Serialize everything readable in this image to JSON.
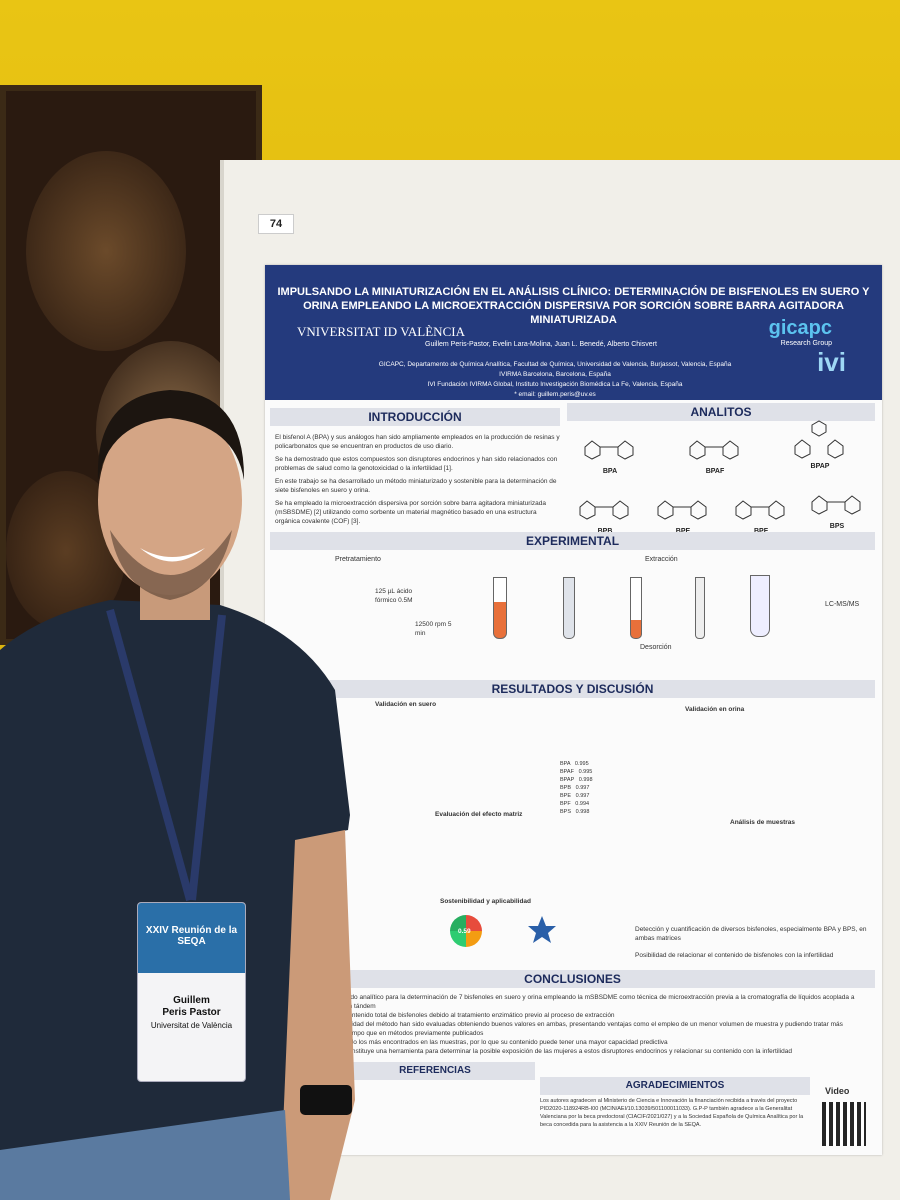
{
  "poster": {
    "number": "74",
    "title": "IMPULSANDO LA MINIATURIZACIÓN EN EL ANÁLISIS CLÍNICO: DETERMINACIÓN DE BISFENOLES EN SUERO Y ORINA EMPLEANDO LA MICROEXTRACCIÓN DISPERSIVA POR SORCIÓN SOBRE BARRA AGITADORA MINIATURIZADA",
    "university": "VNIVERSITAT ID VALÈNCIA",
    "authors": "Guillem Peris-Pastor, Evelin Lara-Molina, Juan L. Benedé, Alberto Chisvert",
    "affiliation1": "GICAPC, Departamento de Química Analítica, Facultad de Química, Universidad de Valencia, Burjassot, Valencia, España",
    "affiliation2": "IVIRMA Barcelona, Barcelona, España",
    "affiliation3": "IVI Fundación IVIRMA Global, Instituto Investigación Biomédica La Fe, Valencia, España",
    "email": "* email: guillem.peris@uv.es",
    "group": "gicapc",
    "group_sub": "Research Group",
    "ivi": "ivi",
    "sections": {
      "intro": "INTRODUCCIÓN",
      "analitos": "ANALITOS",
      "experimental": "EXPERIMENTAL",
      "resultados": "RESULTADOS Y DISCUSIÓN",
      "conclusiones": "CONCLUSIONES",
      "referencias": "REFERENCIAS",
      "agradecimientos": "AGRADECIMIENTOS",
      "video": "Video"
    },
    "intro_bullets": [
      "El bisfenol A (BPA) y sus análogos han sido ampliamente empleados en la producción de resinas y policarbonatos que se encuentran en productos de uso diario.",
      "Se ha demostrado que estos compuestos son disruptores endocrinos y han sido relacionados con problemas de salud como la genotoxicidad o la infertilidad [1].",
      "En este trabajo se ha desarrollado un método miniaturizado y sostenible para la determinación de siete bisfenoles en suero y orina.",
      "Se ha empleado la microextracción dispersiva por sorción sobre barra agitadora miniaturizada (mSBSDME) [2] utilizando como sorbente un material magnético basado en una estructura orgánica covalente (COF) [3]."
    ],
    "analytes": [
      "BPA",
      "BPAF",
      "BPAP",
      "BPB",
      "BPE",
      "BPF",
      "BPS"
    ],
    "experimental_labels": {
      "pretratamiento": "Pretratamiento",
      "extraccion": "Extracción",
      "desorcion": "Desorción",
      "lcms": "LC-MS/MS",
      "step1": "125 µL ácido fórmico 0.5M",
      "step2": "12500 rpm 5 min"
    },
    "validation_titles": [
      "Validación en suero",
      "Validación en orina"
    ],
    "matrix_title": "Evaluación del efecto matriz",
    "samples_title": "Análisis de muestras",
    "sustainability_title": "Sostenibilidad y aplicabilidad",
    "sustainability_score": "0.59",
    "orina_analitos": [
      "BPA",
      "BPAF",
      "BPAP",
      "BPB",
      "BPE",
      "BPF",
      "BPS"
    ],
    "orina_R2": [
      "0.995",
      "0.995",
      "0.998",
      "0.997",
      "0.997",
      "0.994",
      "0.998"
    ],
    "results_bullets": [
      "Detección y cuantificación de diversos bisfenoles, especialmente BPA y BPS, en ambas matrices",
      "Posibilidad de relacionar el contenido de bisfenoles con la infertilidad"
    ],
    "conclusion_lines": [
      "todo analítico para la determinación de 7 bisfenoles en suero y orina empleando la mSBSDME como técnica de microextracción previa a la cromatografía de líquidos acoplada a",
      "en tándem",
      "contenido total de bisfenoles debido al tratamiento enzimático previo al proceso de extracción",
      "bilidad del método han sido evaluadas obteniendo buenos valores en ambas, presentando ventajas como el empleo de un menor volumen de muestra y pudiendo tratar más",
      "tiempo que en métodos previamente publicados",
      "sido los más encontrados en las muestras, por lo que su contenido puede tener una mayor capacidad predictiva",
      "constituye una herramienta para determinar la posible exposición de las mujeres a estos disruptores endocrinos y relacionar su contenido con la infertilidad"
    ],
    "acknowledgements": "Los autores agradecen al Ministerio de Ciencia e Innovación la financiación recibida a través del proyecto PID2020-118924RB-I00 (MCIN/AEI/10.13039/501100011033). G.P-P también agradece a la Generalitat Valenciana por la beca predoctoral (CIACIF/2021/027) y a la Sociedad Española de Química Analítica por la beca concedida para la asistencia a la XXIV Reunión de la SEQA."
  },
  "badge": {
    "event": "XXIV Reunión de la SEQA",
    "name_line1": "Guillem",
    "name_line2": "Peris Pastor",
    "university": "Universitat de València"
  },
  "colors": {
    "wall": "#e6c416",
    "poster_header": "#243a7d",
    "section_bar": "#dfe1e8",
    "shirt": "#1f2a3a",
    "badge_header": "#2a6fa8"
  }
}
